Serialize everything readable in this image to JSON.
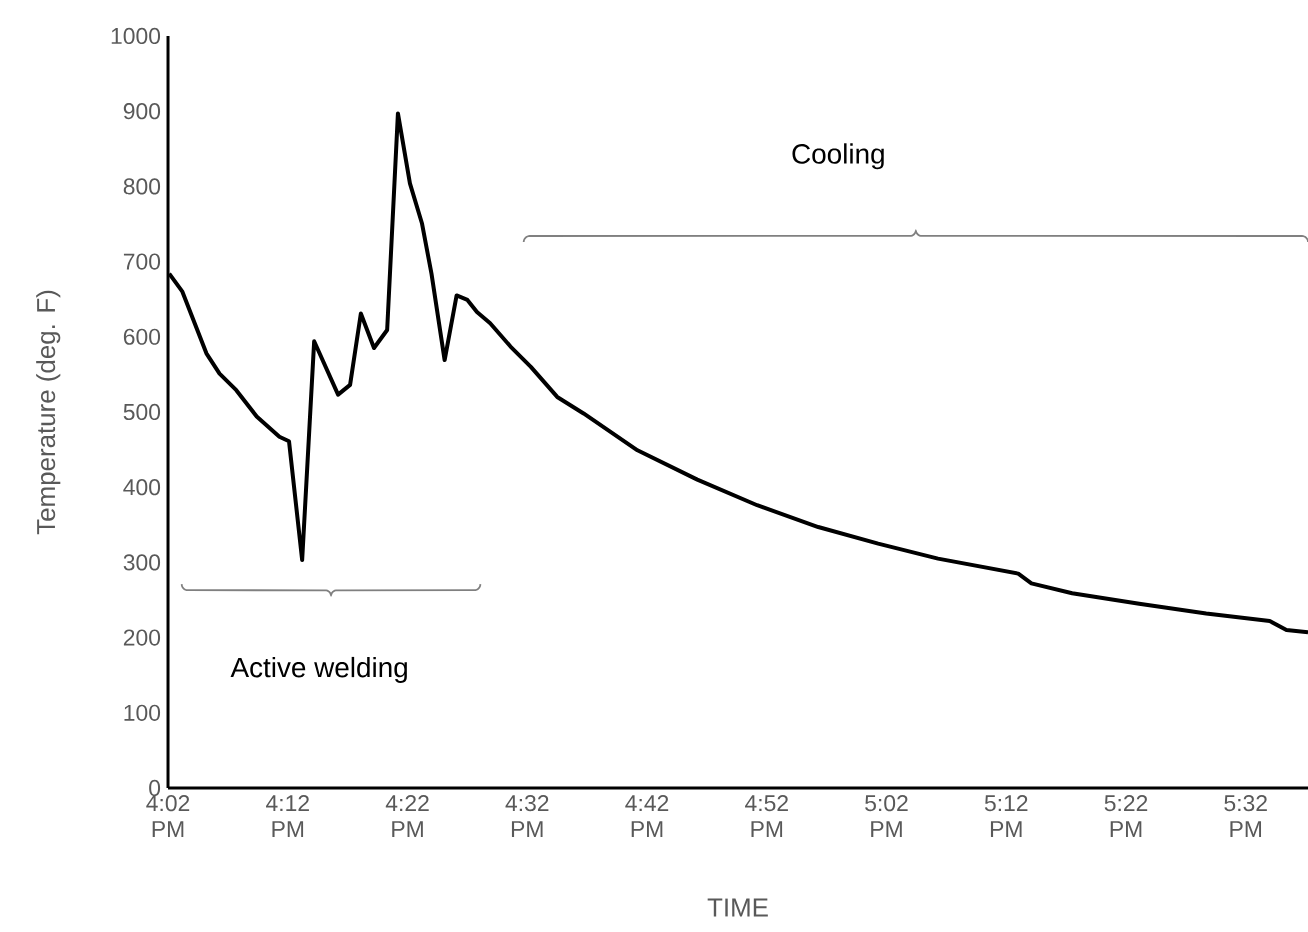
{
  "chart_data": {
    "type": "line",
    "xlabel": "TIME",
    "ylabel": "Temperature (deg. F)",
    "xlim": [
      16.0333,
      17.62
    ],
    "xticks": [
      {
        "value": 16.0333,
        "label": "4:02 PM"
      },
      {
        "value": 16.2,
        "label": "4:12 PM"
      },
      {
        "value": 16.3667,
        "label": "4:22 PM"
      },
      {
        "value": 16.5333,
        "label": "4:32 PM"
      },
      {
        "value": 16.7,
        "label": "4:42 PM"
      },
      {
        "value": 16.8667,
        "label": "4:52 PM"
      },
      {
        "value": 17.0333,
        "label": "5:02 PM"
      },
      {
        "value": 17.2,
        "label": "5:12 PM"
      },
      {
        "value": 17.3667,
        "label": "5:22 PM"
      },
      {
        "value": 17.5333,
        "label": "5:32 PM"
      }
    ],
    "ylim": [
      0,
      1000
    ],
    "yticks": [
      0,
      100,
      200,
      300,
      400,
      500,
      600,
      700,
      800,
      900,
      1000
    ],
    "grid": false,
    "marker": "none",
    "line_style": "solid",
    "annotations": [
      "Active welding",
      "Cooling"
    ],
    "series": [
      {
        "color": "#000000",
        "x": [
          16.035,
          16.0533,
          16.0867,
          16.105,
          16.1283,
          16.1567,
          16.1883,
          16.2017,
          16.22,
          16.2367,
          16.27,
          16.2867,
          16.3017,
          16.32,
          16.3383,
          16.3533,
          16.37,
          16.3867,
          16.4,
          16.4183,
          16.435,
          16.45,
          16.4633,
          16.4817,
          16.51,
          16.5383,
          16.575,
          16.6117,
          16.6867,
          16.77,
          16.8533,
          16.9383,
          17.0217,
          17.105,
          17.2167,
          17.235,
          17.2917,
          17.385,
          17.4783,
          17.5667,
          17.59,
          17.62
        ],
        "values": [
          684,
          660,
          578,
          551,
          529,
          494,
          467,
          461,
          303,
          594,
          523,
          536,
          631,
          585,
          609,
          897,
          804,
          751,
          684,
          569,
          655,
          649,
          633,
          618,
          587,
          560,
          520,
          498,
          449,
          410,
          376,
          347,
          325,
          305,
          285,
          272,
          259,
          245,
          232,
          222,
          210,
          207
        ]
      }
    ]
  }
}
